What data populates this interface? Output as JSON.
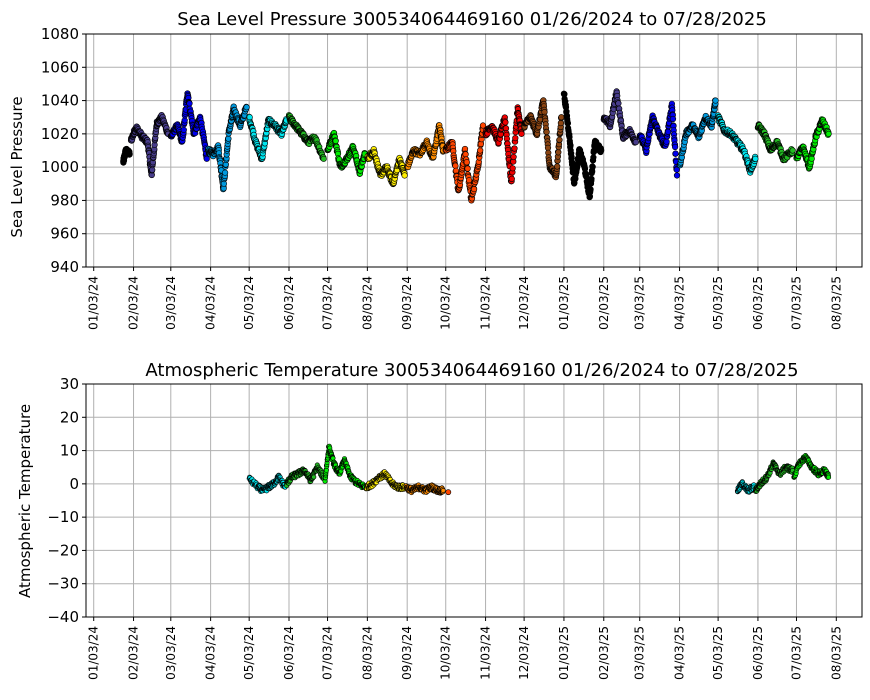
{
  "chart_data": [
    {
      "type": "scatter",
      "title": "Sea Level Pressure 300534064469160  01/26/2024 to 07/28/2025",
      "ylabel": "Sea Level Pressure",
      "xlabel": "",
      "ylim": [
        940,
        1080
      ],
      "yticks": [
        940,
        960,
        980,
        1000,
        1020,
        1040,
        1060,
        1080
      ],
      "xlim": [
        "2023-12-28",
        "2025-08-23"
      ],
      "xticks": [
        "01/03/24",
        "02/03/24",
        "03/03/24",
        "04/03/24",
        "05/03/24",
        "06/03/24",
        "07/03/24",
        "08/03/24",
        "09/03/24",
        "10/03/24",
        "11/03/24",
        "12/03/24",
        "01/03/25",
        "02/03/25",
        "03/03/25",
        "04/03/25",
        "05/03/25",
        "06/03/25",
        "07/03/25",
        "08/03/25"
      ],
      "grid": true,
      "series": [
        {
          "color": "#000000",
          "x": [
            "2024-01-26",
            "2024-01-28",
            "2024-01-31"
          ],
          "y": [
            1003,
            1010,
            1008
          ]
        },
        {
          "color": "#483D8B",
          "x": [
            "2024-02-01",
            "2024-02-05",
            "2024-02-10",
            "2024-02-14",
            "2024-02-17",
            "2024-02-21",
            "2024-02-25",
            "2024-03-01"
          ],
          "y": [
            1016,
            1024,
            1018,
            1015,
            995,
            1026,
            1030,
            1020
          ]
        },
        {
          "color": "#0000EE",
          "x": [
            "2024-03-03",
            "2024-03-08",
            "2024-03-12",
            "2024-03-16",
            "2024-03-21",
            "2024-03-26",
            "2024-03-31"
          ],
          "y": [
            1018,
            1025,
            1015,
            1045,
            1020,
            1030,
            1005
          ]
        },
        {
          "color": "#0099DD",
          "x": [
            "2024-04-01",
            "2024-04-05",
            "2024-04-09",
            "2024-04-13",
            "2024-04-17",
            "2024-04-21",
            "2024-04-26",
            "2024-05-01"
          ],
          "y": [
            1010,
            1008,
            1012,
            987,
            1020,
            1035,
            1025,
            1036
          ]
        },
        {
          "color": "#00E5EE",
          "x": [
            "2024-05-03",
            "2024-05-08",
            "2024-05-13",
            "2024-05-18",
            "2024-05-23",
            "2024-05-28",
            "2024-06-01"
          ],
          "y": [
            1030,
            1015,
            1005,
            1028,
            1025,
            1020,
            1028
          ]
        },
        {
          "color": "#22BB22",
          "x": [
            "2024-06-03",
            "2024-06-08",
            "2024-06-13",
            "2024-06-18",
            "2024-06-23",
            "2024-06-30"
          ],
          "y": [
            1030,
            1025,
            1020,
            1015,
            1018,
            1005
          ]
        },
        {
          "color": "#00EE00",
          "x": [
            "2024-07-03",
            "2024-07-08",
            "2024-07-13",
            "2024-07-18",
            "2024-07-23",
            "2024-07-28",
            "2024-08-01"
          ],
          "y": [
            1010,
            1020,
            1000,
            1005,
            1012,
            997,
            1008
          ]
        },
        {
          "color": "#FFEE00",
          "x": [
            "2024-08-03",
            "2024-08-08",
            "2024-08-13",
            "2024-08-18",
            "2024-08-23",
            "2024-08-28",
            "2024-09-01"
          ],
          "y": [
            1005,
            1010,
            995,
            1000,
            990,
            1005,
            995
          ]
        },
        {
          "color": "#FF8C00",
          "x": [
            "2024-09-03",
            "2024-09-08",
            "2024-09-13",
            "2024-09-18",
            "2024-09-23",
            "2024-09-28",
            "2024-10-01"
          ],
          "y": [
            1000,
            1010,
            1008,
            1015,
            1005,
            1025,
            1010
          ]
        },
        {
          "color": "#FF4500",
          "x": [
            "2024-10-03",
            "2024-10-08",
            "2024-10-13",
            "2024-10-18",
            "2024-10-23",
            "2024-10-28",
            "2024-11-01"
          ],
          "y": [
            1010,
            1015,
            985,
            1010,
            980,
            1000,
            1025
          ]
        },
        {
          "color": "#EE0000",
          "x": [
            "2024-11-03",
            "2024-11-08",
            "2024-11-13",
            "2024-11-18",
            "2024-11-23",
            "2024-11-28",
            "2024-12-01"
          ],
          "y": [
            1020,
            1025,
            1015,
            1030,
            990,
            1035,
            1020
          ]
        },
        {
          "color": "#8B4513",
          "x": [
            "2024-12-03",
            "2024-12-08",
            "2024-12-13",
            "2024-12-18",
            "2024-12-23",
            "2024-12-28",
            "2025-01-01"
          ],
          "y": [
            1025,
            1030,
            1020,
            1040,
            1000,
            995,
            1030
          ]
        },
        {
          "color": "#000000",
          "x": [
            "2025-01-03",
            "2025-01-07",
            "2025-01-11",
            "2025-01-15",
            "2025-01-19",
            "2025-01-23",
            "2025-01-27",
            "2025-02-01"
          ],
          "y": [
            1045,
            1020,
            990,
            1010,
            1000,
            982,
            1015,
            1010
          ]
        },
        {
          "color": "#483D8B",
          "x": [
            "2025-02-03",
            "2025-02-08",
            "2025-02-13",
            "2025-02-18",
            "2025-02-23",
            "2025-02-28"
          ],
          "y": [
            1030,
            1025,
            1045,
            1018,
            1022,
            1015
          ]
        },
        {
          "color": "#0000EE",
          "x": [
            "2025-03-03",
            "2025-03-08",
            "2025-03-13",
            "2025-03-18",
            "2025-03-23",
            "2025-03-28",
            "2025-04-01"
          ],
          "y": [
            1020,
            1010,
            1030,
            1020,
            1012,
            1038,
            995
          ]
        },
        {
          "color": "#0099DD",
          "x": [
            "2025-04-03",
            "2025-04-08",
            "2025-04-13",
            "2025-04-18",
            "2025-04-23",
            "2025-04-28",
            "2025-05-01"
          ],
          "y": [
            1000,
            1020,
            1025,
            1018,
            1030,
            1025,
            1040
          ]
        },
        {
          "color": "#00E5EE",
          "x": [
            "2025-05-03",
            "2025-05-08",
            "2025-05-13",
            "2025-05-18",
            "2025-05-23",
            "2025-05-28",
            "2025-06-01"
          ],
          "y": [
            1030,
            1022,
            1020,
            1015,
            1010,
            998,
            1005
          ]
        },
        {
          "color": "#22BB22",
          "x": [
            "2025-06-03",
            "2025-06-08",
            "2025-06-13",
            "2025-06-18",
            "2025-06-23",
            "2025-06-30"
          ],
          "y": [
            1025,
            1020,
            1010,
            1015,
            1005,
            1010
          ]
        },
        {
          "color": "#00EE00",
          "x": [
            "2025-07-03",
            "2025-07-08",
            "2025-07-13",
            "2025-07-18",
            "2025-07-23",
            "2025-07-28"
          ],
          "y": [
            1005,
            1012,
            1000,
            1018,
            1028,
            1020
          ]
        }
      ]
    },
    {
      "type": "scatter",
      "title": "Atmospheric Temperature 300534064469160  01/26/2024 to 07/28/2025",
      "ylabel": "Atmospheric Temperature",
      "xlabel": "",
      "ylim": [
        -40,
        30
      ],
      "yticks": [
        -40,
        -30,
        -20,
        -10,
        0,
        10,
        20,
        30
      ],
      "xlim": [
        "2023-12-28",
        "2025-08-23"
      ],
      "xticks": [
        "01/03/24",
        "02/03/24",
        "03/03/24",
        "04/03/24",
        "05/03/24",
        "06/03/24",
        "07/03/24",
        "08/03/24",
        "09/03/24",
        "10/03/24",
        "11/03/24",
        "12/03/24",
        "01/03/25",
        "02/03/25",
        "03/03/25",
        "04/03/25",
        "05/03/25",
        "06/03/25",
        "07/03/25",
        "08/03/25"
      ],
      "tick_labels": [
        "−40",
        "−30",
        "−20",
        "−10",
        "0",
        "10",
        "20",
        "30"
      ],
      "grid": true,
      "series": [
        {
          "color": "#00E5EE",
          "x": [
            "2024-05-03",
            "2024-05-10",
            "2024-05-14",
            "2024-05-18",
            "2024-05-22",
            "2024-05-26",
            "2024-05-31"
          ],
          "y": [
            1.5,
            -1,
            -2,
            -1,
            0,
            2,
            -1
          ]
        },
        {
          "color": "#22BB22",
          "x": [
            "2024-06-01",
            "2024-06-05",
            "2024-06-10",
            "2024-06-15",
            "2024-06-20",
            "2024-06-25",
            "2024-06-30"
          ],
          "y": [
            0,
            2,
            3,
            4,
            1,
            5,
            2
          ]
        },
        {
          "color": "#00EE00",
          "x": [
            "2024-07-01",
            "2024-07-04",
            "2024-07-08",
            "2024-07-12",
            "2024-07-16",
            "2024-07-21",
            "2024-07-27",
            "2024-08-01"
          ],
          "y": [
            1,
            11,
            6,
            3,
            7,
            2,
            0,
            -1
          ]
        },
        {
          "color": "#FFEE00",
          "x": [
            "2024-08-02",
            "2024-08-07",
            "2024-08-12",
            "2024-08-17",
            "2024-08-22",
            "2024-08-27",
            "2024-09-01"
          ],
          "y": [
            -1,
            0,
            2,
            3,
            0,
            -1,
            -1
          ]
        },
        {
          "color": "#FF8C00",
          "x": [
            "2024-09-02",
            "2024-09-07",
            "2024-09-12",
            "2024-09-17",
            "2024-09-22",
            "2024-09-27",
            "2024-10-01"
          ],
          "y": [
            -1,
            -2,
            -1,
            -2,
            -1,
            -2,
            -2
          ]
        },
        {
          "color": "#FF4500",
          "x": [
            "2024-10-05"
          ],
          "y": [
            -2.5
          ]
        },
        {
          "color": "#00E5EE",
          "x": [
            "2025-05-18",
            "2025-05-22",
            "2025-05-26",
            "2025-05-31"
          ],
          "y": [
            -2,
            0,
            -2,
            -1
          ]
        },
        {
          "color": "#22BB22",
          "x": [
            "2025-06-01",
            "2025-06-05",
            "2025-06-10",
            "2025-06-15",
            "2025-06-20",
            "2025-06-25",
            "2025-06-30"
          ],
          "y": [
            -2,
            0,
            2,
            6,
            3,
            5,
            4
          ]
        },
        {
          "color": "#00EE00",
          "x": [
            "2025-07-01",
            "2025-07-05",
            "2025-07-10",
            "2025-07-15",
            "2025-07-20",
            "2025-07-25",
            "2025-07-28"
          ],
          "y": [
            2,
            6,
            8,
            5,
            3,
            4,
            2
          ]
        }
      ]
    }
  ]
}
